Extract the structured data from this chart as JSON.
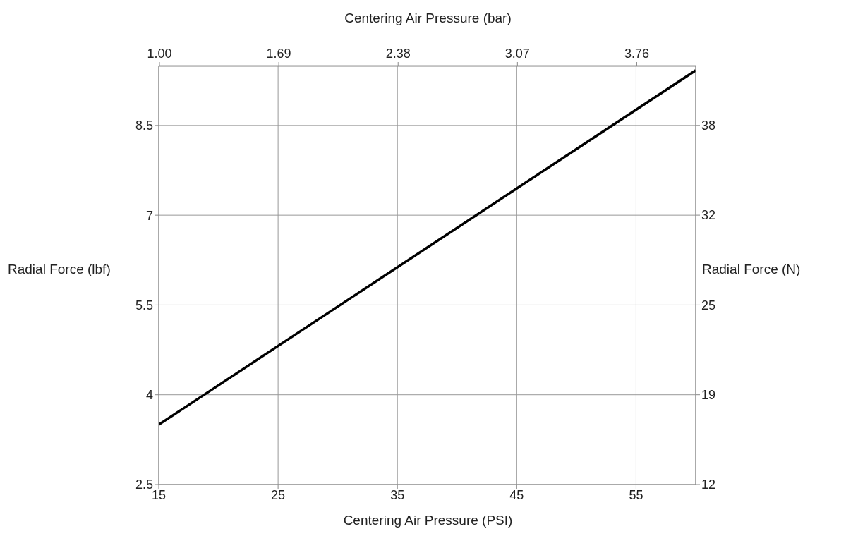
{
  "chart_data": {
    "type": "line",
    "xlabel": "Centering Air Pressure (PSI)",
    "x2label": "Centering Air Pressure (bar)",
    "ylabel": "Radial Force (lbf)",
    "y2label": "Radial Force (N)",
    "x": [
      15,
      60
    ],
    "series": [
      {
        "color": "#000000",
        "values": [
          3.5,
          9.42
        ]
      }
    ],
    "xlim": [
      15,
      60
    ],
    "xticks": [
      15,
      25,
      35,
      45,
      55
    ],
    "x2lim": [
      1.0,
      4.105
    ],
    "x2ticks": [
      {
        "value": 1.0,
        "label": "1.00"
      },
      1.69,
      2.38,
      3.07,
      3.76
    ],
    "ylim": [
      2.5,
      9.5
    ],
    "yticks": [
      2.5,
      4,
      5.5,
      7,
      8.5
    ],
    "y2lim": [
      12,
      42.33
    ],
    "y2ticks": [
      12,
      {
        "value": 18.5,
        "label": "19"
      },
      25,
      {
        "value": 31.5,
        "label": "32"
      },
      38
    ],
    "grid": true
  }
}
